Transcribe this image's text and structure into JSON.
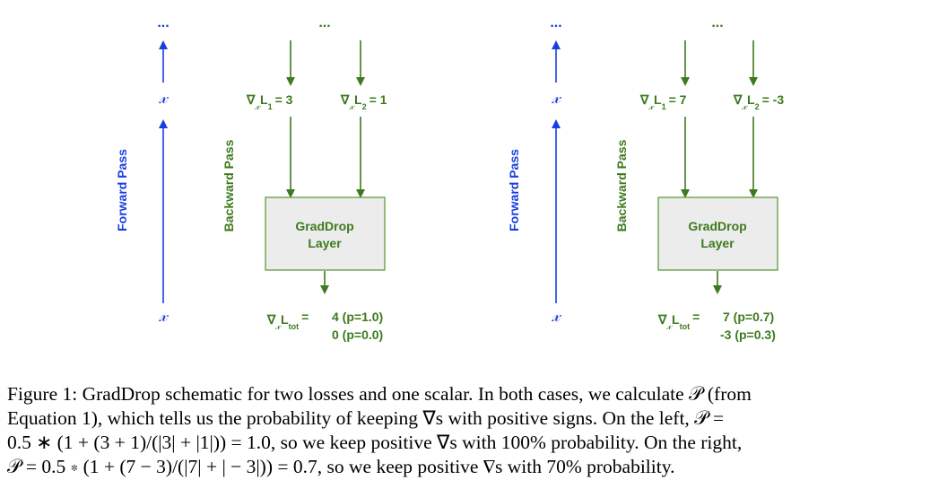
{
  "colors": {
    "forward": "#1a3fe0",
    "backward": "#3d7a1e",
    "box_fill": "#ececec",
    "box_stroke": "#6aa24a"
  },
  "panels": [
    {
      "forward_label": "Forward Pass",
      "backward_label": "Backward Pass",
      "ellipsis": "...",
      "x_symbol": "𝓍",
      "nabla": "∇",
      "grad1_sub": "1",
      "grad1_value": "= 3",
      "grad2_sub": "2",
      "grad2_value": "= 1",
      "layer_line1": "GradDrop",
      "layer_line2": "Layer",
      "total_sub": "tot",
      "total_eq": "=",
      "out1": "4 (p=1.0)",
      "out2": "0 (p=0.0)"
    },
    {
      "forward_label": "Forward Pass",
      "backward_label": "Backward Pass",
      "ellipsis": "...",
      "x_symbol": "𝓍",
      "nabla": "∇",
      "grad1_sub": "1",
      "grad1_value": "= 7",
      "grad2_sub": "2",
      "grad2_value": "= -3",
      "layer_line1": "GradDrop",
      "layer_line2": "Layer",
      "total_sub": "tot",
      "total_eq": "=",
      "out1": "7 (p=0.7)",
      "out2": "-3 (p=0.3)"
    }
  ],
  "caption": {
    "line1": "Figure 1: GradDrop schematic for two losses and one scalar. In both cases, we calculate 𝒫 (from",
    "line2": "Equation 1), which tells us the probability of keeping ∇s with positive signs. On the left, 𝒫 =",
    "line3": "0.5 ∗ (1 + (3 + 1)/(|3| + |1|)) = 1.0, so we keep positive ∇s with 100% probability. On the right,",
    "line4": "𝒫 = 0.5 ∗ (1 + (7 − 3)/(|7| + | − 3|)) = 0.7, so we keep positive ∇s with 70% probability."
  }
}
